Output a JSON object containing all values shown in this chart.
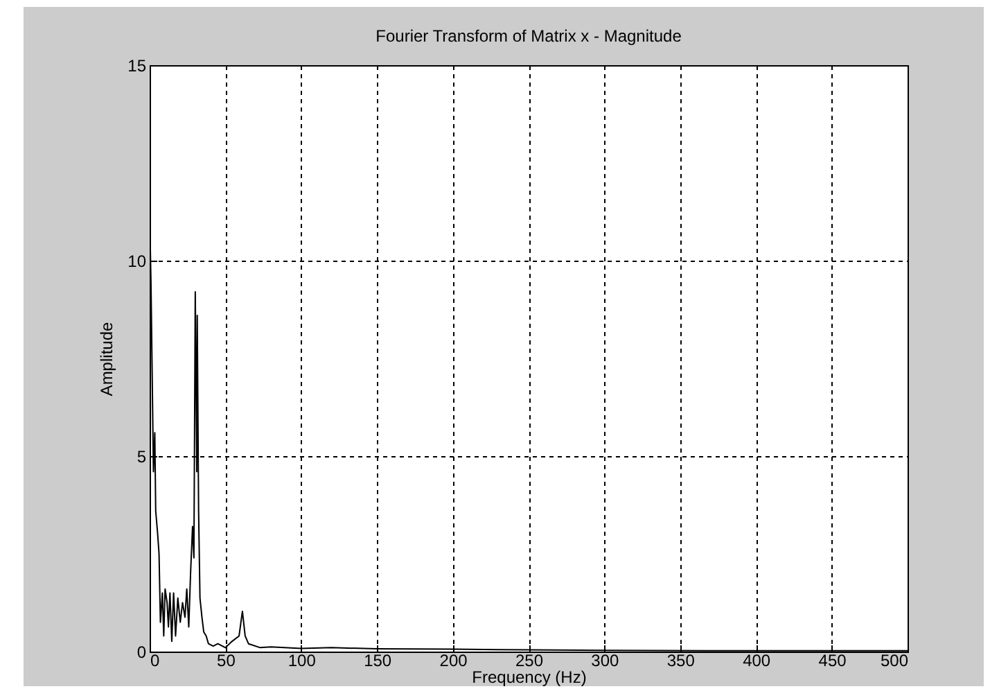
{
  "chart_data": {
    "type": "line",
    "title": "Fourier Transform of Matrix x - Magnitude",
    "xlabel": "Frequency (Hz)",
    "ylabel": "Amplitude",
    "x": [
      0,
      0.9,
      2.5,
      3.4,
      4.0,
      5.3,
      6.2,
      7.1,
      8.4,
      9.3,
      10.2,
      11.5,
      12.4,
      13.4,
      14.6,
      15.8,
      17.1,
      18.6,
      20.2,
      21.7,
      23.3,
      24.5,
      25.8,
      27.0,
      28.3,
      29.2,
      30.1,
      31.1,
      31.4,
      32.3,
      33.2,
      34.5,
      35.7,
      37.3,
      38.8,
      41.9,
      45,
      50,
      54.3,
      59,
      61.2,
      63,
      65.2,
      73,
      80,
      100,
      120,
      150,
      200,
      230,
      300,
      400,
      500
    ],
    "series": [
      {
        "color": "#000000",
        "values": [
          11.2,
          9.4,
          4.6,
          5.6,
          3.6,
          3.0,
          2.5,
          0.75,
          1.5,
          0.4,
          1.6,
          1.25,
          0.63,
          1.5,
          0.26,
          1.5,
          0.4,
          1.37,
          0.75,
          1.25,
          0.88,
          1.6,
          0.63,
          2.0,
          3.2,
          2.4,
          9.2,
          4.6,
          8.6,
          3.6,
          1.37,
          0.88,
          0.5,
          0.4,
          0.2,
          0.14,
          0.2,
          0.1,
          0.26,
          0.4,
          1.03,
          0.4,
          0.2,
          0.1,
          0.12,
          0.08,
          0.1,
          0.07,
          0.06,
          0.05,
          0.03,
          0.02,
          0.02
        ]
      }
    ],
    "xlim": [
      0,
      500
    ],
    "xticks": [
      0,
      50,
      100,
      150,
      200,
      250,
      300,
      350,
      400,
      450,
      500
    ],
    "ylim": [
      0,
      15
    ],
    "yticks": [
      0,
      5,
      10,
      15
    ],
    "grid": true
  }
}
